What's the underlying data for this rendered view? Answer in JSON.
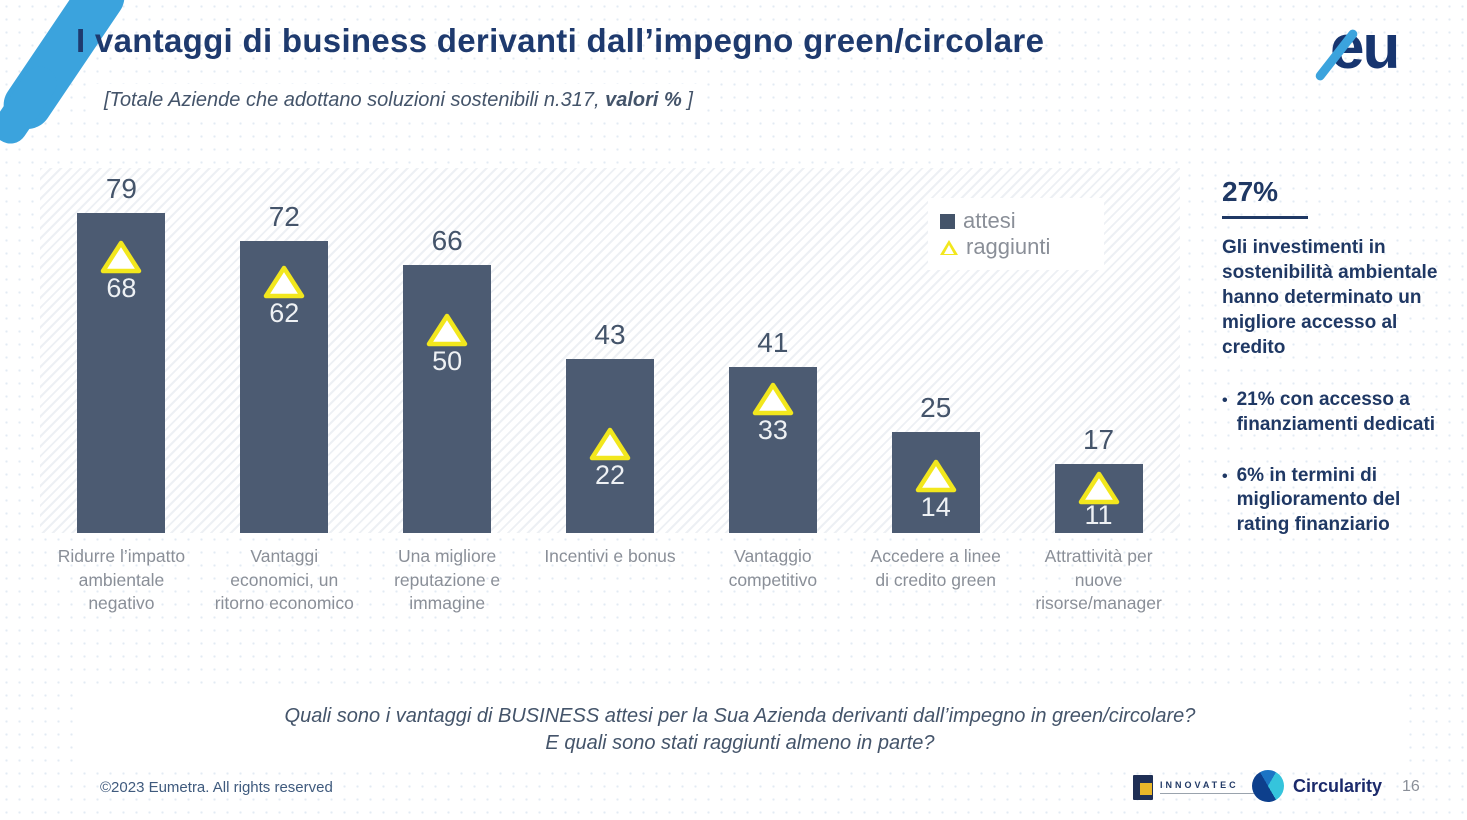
{
  "header": {
    "title": "I vantaggi di business derivanti dall’impegno green/circolare",
    "subtitle": {
      "prefix": "[Totale Aziende che adottano soluzioni sostenibili n.317, ",
      "bold": "valori %",
      "suffix": " ]"
    },
    "logo_text": "eu"
  },
  "chart_data": {
    "type": "bar",
    "title": "",
    "categories": [
      "Ridurre l’impatto ambientale negativo",
      "Vantaggi economici, un ritorno economico",
      "Una migliore reputazione e immagine",
      "Incentivi e bonus",
      "Vantaggio competitivo",
      "Accedere a linee di credito green",
      "Attrattività per nuove risorse/manager"
    ],
    "series": [
      {
        "name": "attesi",
        "marker": "square",
        "color": "#4c5b72",
        "values": [
          79,
          72,
          66,
          43,
          41,
          25,
          17
        ]
      },
      {
        "name": "raggiunti",
        "marker": "triangle",
        "color": "#f2e71d",
        "values": [
          68,
          62,
          50,
          22,
          33,
          14,
          11
        ]
      }
    ],
    "xlabel": "",
    "ylabel": "",
    "ylim": [
      0,
      90
    ],
    "grid": false,
    "legend_position": "top-right",
    "value_labels": true
  },
  "side_panel": {
    "stat": "27%",
    "paragraph": "Gli investimenti in sostenibilità ambientale hanno determinato un migliore accesso al credito",
    "bullets": [
      "21% con accesso a finanziamenti dedicati",
      "6% in termini di miglioramento del rating finanziario"
    ]
  },
  "question": {
    "line1": "Quali sono i vantaggi di BUSINESS attesi per la Sua Azienda derivanti dall’impegno in green/circolare?",
    "line2": "E quali sono stati raggiunti almeno in parte?"
  },
  "footer": {
    "copyright": "©2023 Eumetra. All rights reserved",
    "innovatec_label": "INNOVATEC",
    "circularity_label": "Circularity",
    "page_number": "16"
  }
}
